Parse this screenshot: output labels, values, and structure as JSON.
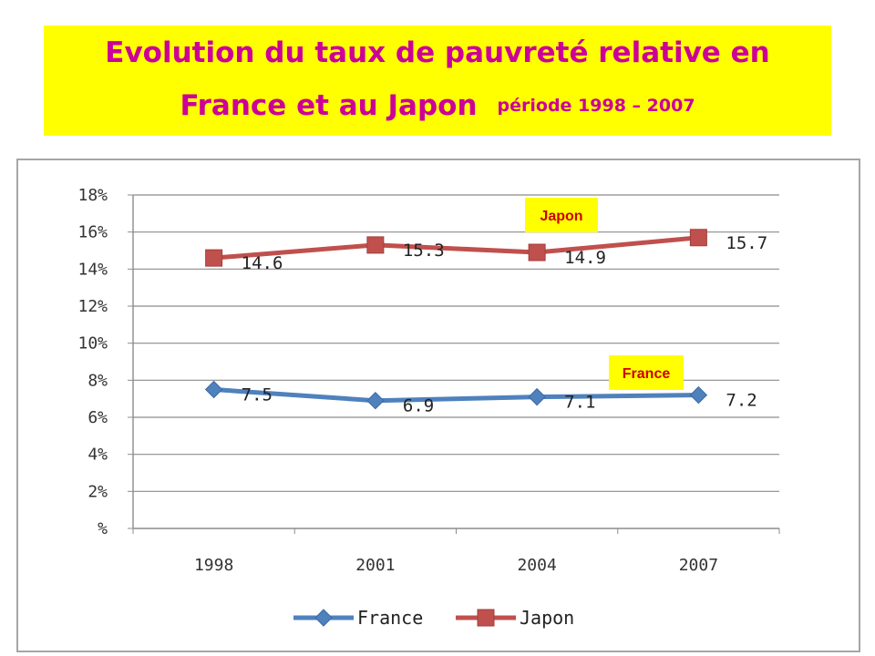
{
  "header": {
    "title_line1": "Evolution du taux de pauvreté relative en",
    "title_line2": "France et au Japon",
    "period": "période 1998 – 2007"
  },
  "chart_data": {
    "type": "line",
    "title": "",
    "xlabel": "",
    "ylabel": "",
    "categories": [
      "1998",
      "2001",
      "2004",
      "2007"
    ],
    "y_ticks": [
      "%",
      "2%",
      "4%",
      "6%",
      "8%",
      "10%",
      "12%",
      "14%",
      "16%",
      "18%"
    ],
    "ylim": [
      0,
      18
    ],
    "grid": true,
    "legend_position": "bottom",
    "series": [
      {
        "name": "France",
        "values": [
          7.5,
          6.9,
          7.1,
          7.2
        ],
        "labels": [
          "7.5",
          "6.9",
          "7.1",
          "7.2"
        ],
        "color": "#4f81bd",
        "marker": "diamond"
      },
      {
        "name": "Japon",
        "values": [
          14.6,
          15.3,
          14.9,
          15.7
        ],
        "labels": [
          "14.6",
          "15.3",
          "14.9",
          "15.7"
        ],
        "color": "#c0504d",
        "marker": "square"
      }
    ],
    "annotations": [
      {
        "text": "Japon",
        "series": "Japon"
      },
      {
        "text": "France",
        "series": "France"
      }
    ]
  }
}
